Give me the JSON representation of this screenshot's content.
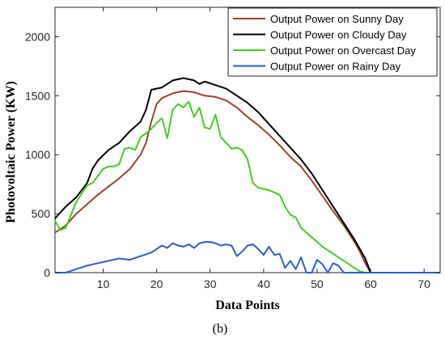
{
  "panel_label": "(b)",
  "chart_data": {
    "type": "line",
    "xlabel": "Data Points",
    "ylabel": "Photovoltaic Power (KW)",
    "xlim": [
      1,
      73
    ],
    "ylim": [
      0,
      2250
    ],
    "xticks": [
      10,
      20,
      30,
      40,
      50,
      60,
      70
    ],
    "yticks": [
      0,
      500,
      1000,
      1500,
      2000
    ],
    "grid": false,
    "legend_position": "top-right",
    "series": [
      {
        "name": "Output Power on Sunny Day",
        "color": "#a0402a",
        "points": [
          [
            1,
            340
          ],
          [
            3,
            400
          ],
          [
            5,
            500
          ],
          [
            7,
            580
          ],
          [
            9,
            660
          ],
          [
            11,
            730
          ],
          [
            13,
            800
          ],
          [
            15,
            880
          ],
          [
            17,
            1000
          ],
          [
            18,
            1100
          ],
          [
            19,
            1280
          ],
          [
            20,
            1430
          ],
          [
            21,
            1480
          ],
          [
            23,
            1520
          ],
          [
            25,
            1540
          ],
          [
            27,
            1530
          ],
          [
            29,
            1500
          ],
          [
            31,
            1490
          ],
          [
            33,
            1460
          ],
          [
            35,
            1400
          ],
          [
            37,
            1320
          ],
          [
            39,
            1250
          ],
          [
            41,
            1170
          ],
          [
            43,
            1080
          ],
          [
            45,
            980
          ],
          [
            47,
            900
          ],
          [
            49,
            780
          ],
          [
            51,
            650
          ],
          [
            53,
            520
          ],
          [
            55,
            400
          ],
          [
            57,
            260
          ],
          [
            58,
            180
          ],
          [
            59,
            80
          ],
          [
            60,
            0
          ],
          [
            73,
            0
          ]
        ]
      },
      {
        "name": "Output Power on Cloudy Day",
        "color": "#000000",
        "points": [
          [
            1,
            460
          ],
          [
            3,
            560
          ],
          [
            5,
            640
          ],
          [
            7,
            760
          ],
          [
            8,
            880
          ],
          [
            9,
            950
          ],
          [
            11,
            1040
          ],
          [
            13,
            1100
          ],
          [
            15,
            1200
          ],
          [
            17,
            1280
          ],
          [
            18,
            1380
          ],
          [
            19,
            1550
          ],
          [
            21,
            1570
          ],
          [
            23,
            1630
          ],
          [
            25,
            1650
          ],
          [
            27,
            1630
          ],
          [
            28,
            1600
          ],
          [
            29,
            1620
          ],
          [
            31,
            1590
          ],
          [
            33,
            1560
          ],
          [
            35,
            1500
          ],
          [
            37,
            1440
          ],
          [
            39,
            1360
          ],
          [
            41,
            1260
          ],
          [
            43,
            1160
          ],
          [
            45,
            1060
          ],
          [
            47,
            960
          ],
          [
            49,
            840
          ],
          [
            51,
            700
          ],
          [
            53,
            560
          ],
          [
            55,
            420
          ],
          [
            57,
            280
          ],
          [
            59,
            120
          ],
          [
            60,
            0
          ],
          [
            73,
            0
          ]
        ]
      },
      {
        "name": "Output Power on Overcast Day",
        "color": "#44cc22",
        "points": [
          [
            1,
            440
          ],
          [
            2,
            360
          ],
          [
            3,
            380
          ],
          [
            5,
            600
          ],
          [
            7,
            740
          ],
          [
            8,
            760
          ],
          [
            9,
            820
          ],
          [
            10,
            880
          ],
          [
            11,
            900
          ],
          [
            12,
            900
          ],
          [
            13,
            920
          ],
          [
            14,
            1050
          ],
          [
            15,
            1060
          ],
          [
            16,
            1040
          ],
          [
            17,
            1150
          ],
          [
            18,
            1180
          ],
          [
            19,
            1220
          ],
          [
            20,
            1270
          ],
          [
            21,
            1310
          ],
          [
            22,
            1140
          ],
          [
            23,
            1380
          ],
          [
            24,
            1430
          ],
          [
            25,
            1400
          ],
          [
            26,
            1450
          ],
          [
            27,
            1320
          ],
          [
            28,
            1400
          ],
          [
            29,
            1230
          ],
          [
            30,
            1220
          ],
          [
            31,
            1340
          ],
          [
            32,
            1150
          ],
          [
            33,
            1100
          ],
          [
            34,
            1050
          ],
          [
            35,
            1060
          ],
          [
            36,
            1040
          ],
          [
            37,
            960
          ],
          [
            38,
            760
          ],
          [
            39,
            720
          ],
          [
            41,
            700
          ],
          [
            43,
            660
          ],
          [
            44,
            560
          ],
          [
            45,
            490
          ],
          [
            46,
            470
          ],
          [
            47,
            380
          ],
          [
            49,
            300
          ],
          [
            51,
            220
          ],
          [
            53,
            160
          ],
          [
            55,
            100
          ],
          [
            57,
            40
          ],
          [
            58,
            10
          ],
          [
            59,
            0
          ],
          [
            73,
            0
          ]
        ]
      },
      {
        "name": "Output Power on Rainy Day",
        "color": "#2b5fc8",
        "points": [
          [
            1,
            0
          ],
          [
            3,
            0
          ],
          [
            5,
            30
          ],
          [
            7,
            60
          ],
          [
            9,
            80
          ],
          [
            11,
            100
          ],
          [
            13,
            120
          ],
          [
            15,
            110
          ],
          [
            17,
            140
          ],
          [
            19,
            170
          ],
          [
            20,
            200
          ],
          [
            21,
            230
          ],
          [
            22,
            210
          ],
          [
            23,
            250
          ],
          [
            24,
            230
          ],
          [
            25,
            220
          ],
          [
            26,
            240
          ],
          [
            27,
            210
          ],
          [
            28,
            250
          ],
          [
            29,
            260
          ],
          [
            30,
            260
          ],
          [
            31,
            250
          ],
          [
            32,
            230
          ],
          [
            33,
            240
          ],
          [
            34,
            230
          ],
          [
            35,
            140
          ],
          [
            36,
            180
          ],
          [
            37,
            230
          ],
          [
            38,
            240
          ],
          [
            39,
            200
          ],
          [
            40,
            150
          ],
          [
            41,
            220
          ],
          [
            42,
            150
          ],
          [
            43,
            160
          ],
          [
            44,
            40
          ],
          [
            45,
            100
          ],
          [
            46,
            30
          ],
          [
            47,
            130
          ],
          [
            48,
            0
          ],
          [
            49,
            0
          ],
          [
            50,
            110
          ],
          [
            51,
            70
          ],
          [
            52,
            0
          ],
          [
            53,
            80
          ],
          [
            54,
            60
          ],
          [
            55,
            0
          ],
          [
            73,
            0
          ]
        ]
      }
    ]
  }
}
